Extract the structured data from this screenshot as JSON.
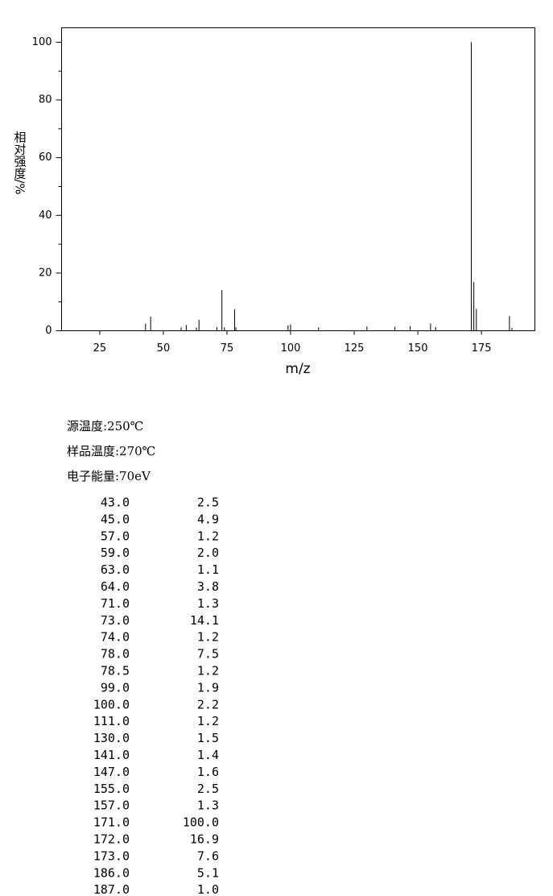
{
  "chart_data": {
    "type": "stem",
    "x_label": "m/z",
    "y_label": "相对强度/%",
    "x": [
      43.0,
      45.0,
      57.0,
      59.0,
      63.0,
      64.0,
      71.0,
      73.0,
      74.0,
      78.0,
      78.5,
      99.0,
      100.0,
      111.0,
      130.0,
      141.0,
      147.0,
      155.0,
      157.0,
      171.0,
      172.0,
      173.0,
      186.0,
      187.0
    ],
    "values": [
      2.5,
      4.9,
      1.2,
      2.0,
      1.1,
      3.8,
      1.3,
      14.1,
      1.2,
      7.5,
      1.2,
      1.9,
      2.2,
      1.2,
      1.5,
      1.4,
      1.6,
      2.5,
      1.3,
      100.0,
      16.9,
      7.6,
      5.1,
      1.0
    ],
    "color": "#000000",
    "xlim": [
      10,
      196
    ],
    "xticks": [
      25,
      50,
      75,
      100,
      125,
      150,
      175
    ],
    "ylim": [
      0,
      105
    ],
    "yticks": [
      0,
      20,
      40,
      60,
      80,
      100
    ],
    "yminor_ticks": [
      10,
      30,
      50,
      70,
      90
    ]
  },
  "conditions": [
    "源温度:250℃",
    "样品温度:270℃",
    "电子能量:70eV"
  ],
  "table": {
    "rows": [
      [
        "43.0",
        "2.5"
      ],
      [
        "45.0",
        "4.9"
      ],
      [
        "57.0",
        "1.2"
      ],
      [
        "59.0",
        "2.0"
      ],
      [
        "63.0",
        "1.1"
      ],
      [
        "64.0",
        "3.8"
      ],
      [
        "71.0",
        "1.3"
      ],
      [
        "73.0",
        "14.1"
      ],
      [
        "74.0",
        "1.2"
      ],
      [
        "78.0",
        "7.5"
      ],
      [
        "78.5",
        "1.2"
      ],
      [
        "99.0",
        "1.9"
      ],
      [
        "100.0",
        "2.2"
      ],
      [
        "111.0",
        "1.2"
      ],
      [
        "130.0",
        "1.5"
      ],
      [
        "141.0",
        "1.4"
      ],
      [
        "147.0",
        "1.6"
      ],
      [
        "155.0",
        "2.5"
      ],
      [
        "157.0",
        "1.3"
      ],
      [
        "171.0",
        "100.0"
      ],
      [
        "172.0",
        "16.9"
      ],
      [
        "173.0",
        "7.6"
      ],
      [
        "186.0",
        "5.1"
      ],
      [
        "187.0",
        "1.0"
      ]
    ]
  }
}
